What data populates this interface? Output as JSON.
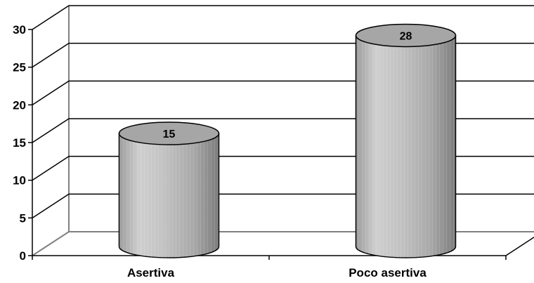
{
  "chart_data": {
    "type": "bar",
    "style": "3d-cylinder",
    "categories": [
      "Asertiva",
      "Poco asertiva"
    ],
    "values": [
      15,
      28
    ],
    "data_labels": [
      "15",
      "28"
    ],
    "ylim": [
      0,
      30
    ],
    "yticks": [
      "0",
      "5",
      "10",
      "15",
      "20",
      "25",
      "30"
    ],
    "grid": true,
    "legend": "none",
    "colors": {
      "bar": "#b8b8b8",
      "bar_top": "#a6a6a6",
      "grid": "#000000",
      "background": "#ffffff"
    }
  }
}
